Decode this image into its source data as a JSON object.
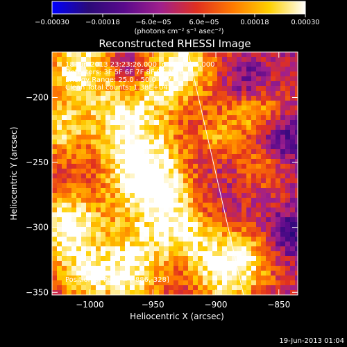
{
  "chart_data": {
    "type": "heatmap",
    "title": "Reconstructed RHESSI Image",
    "xlabel": "Heliocentric X (arcsec)",
    "ylabel": "Heliocentric Y (arcsec)",
    "xlim": [
      -1030,
      -835
    ],
    "ylim": [
      -352,
      -165
    ],
    "x_ticks": [
      -1000,
      -950,
      -900,
      -850
    ],
    "y_ticks": [
      -200,
      -250,
      -300,
      -350
    ],
    "x_tick_labels": [
      "−1000",
      "−950",
      "−900",
      "−850"
    ],
    "y_tick_labels": [
      "−200",
      "−250",
      "−300",
      "−350"
    ],
    "colorbar": {
      "range": [
        -0.0003,
        0.0003
      ],
      "ticks": [
        -0.0003,
        -0.00018,
        -6e-05,
        6e-05,
        0.00018,
        0.0003
      ],
      "tick_labels": [
        "−0.00030",
        "−0.00018",
        "−6.0e−05",
        "6.0e−05",
        "0.00018",
        "0.00030"
      ],
      "unit_label": "(photons cm⁻² s⁻¹ asec⁻²)",
      "colors": [
        "#0000ff",
        "#2a0a78",
        "#5a0a8c",
        "#a0208c",
        "#e03020",
        "#ff7a00",
        "#ffd000",
        "#ffffff"
      ]
    },
    "annotations": [
      "18-Jun-2013 23:23:26.000 to 23:29:26.000",
      "Detectors: 3F 5F 6F 7F 8F 9F  Att 0",
      "Energy Range: 25.0 - 50.0 keV",
      "Clean    Total counts: 1.38E+04"
    ],
    "peak_text": "Position of Peak = [-886,-328]",
    "peak": [
      -886,
      -328
    ],
    "limb_line": [
      [
        -922,
        -165
      ],
      [
        -878,
        -352
      ]
    ],
    "bright_sources": [
      {
        "x": -1018,
        "y": -300,
        "level": 1.0,
        "r": 18
      },
      {
        "x": -1022,
        "y": -225,
        "level": 0.7,
        "r": 14
      },
      {
        "x": -1012,
        "y": -180,
        "level": 0.75,
        "r": 15
      },
      {
        "x": -930,
        "y": -178,
        "level": 0.95,
        "r": 17
      },
      {
        "x": -968,
        "y": -215,
        "level": 0.6,
        "r": 14
      },
      {
        "x": -958,
        "y": -250,
        "level": 0.75,
        "r": 16
      },
      {
        "x": -945,
        "y": -275,
        "level": 0.6,
        "r": 14
      },
      {
        "x": -935,
        "y": -305,
        "level": 0.7,
        "r": 14
      },
      {
        "x": -886,
        "y": -328,
        "level": 1.0,
        "r": 17
      },
      {
        "x": -870,
        "y": -210,
        "level": 0.65,
        "r": 13
      },
      {
        "x": -860,
        "y": -250,
        "level": 0.55,
        "r": 12
      },
      {
        "x": -975,
        "y": -335,
        "level": 0.7,
        "r": 15
      },
      {
        "x": -900,
        "y": -230,
        "level": 0.45,
        "r": 11
      },
      {
        "x": -1005,
        "y": -340,
        "level": 0.55,
        "r": 12
      }
    ],
    "blue_regions": [
      {
        "x": -850,
        "y": -235,
        "level": -0.6,
        "r": 12
      },
      {
        "x": -965,
        "y": -175,
        "level": -0.5,
        "r": 10
      },
      {
        "x": -840,
        "y": -305,
        "level": -0.5,
        "r": 10
      },
      {
        "x": -875,
        "y": -190,
        "level": -0.45,
        "r": 10
      }
    ],
    "grid": false
  },
  "footer": {
    "timestamp": "19-Jun-2013 01:04"
  }
}
